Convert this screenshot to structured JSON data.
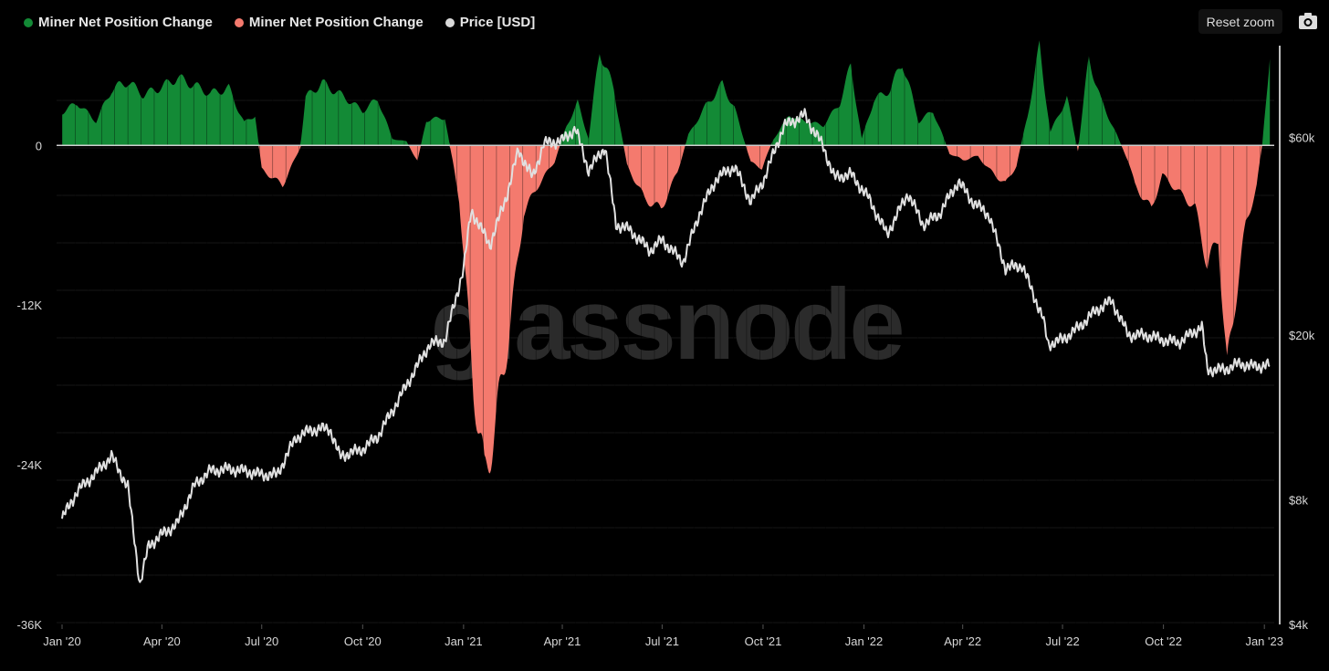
{
  "legend": {
    "items": [
      {
        "label": "Miner Net Position Change",
        "color": "#138a36"
      },
      {
        "label": "Miner Net Position Change",
        "color": "#f47a6e"
      },
      {
        "label": "Price [USD]",
        "color": "#d9d9d9"
      }
    ]
  },
  "toolbar": {
    "reset_label": "Reset zoom",
    "camera_icon": "camera-icon"
  },
  "watermark": "glassnode",
  "chart_data": {
    "type": "area",
    "x_ticks": [
      "Jan '20",
      "Apr '20",
      "Jul '20",
      "Oct '20",
      "Jan '21",
      "Apr '21",
      "Jul '21",
      "Oct '21",
      "Jan '22",
      "Apr '22",
      "Jul '22",
      "Oct '22",
      "Jan '23"
    ],
    "x_tick_dates": [
      "2020-01-01",
      "2020-04-01",
      "2020-07-01",
      "2020-10-01",
      "2021-01-01",
      "2021-04-01",
      "2021-07-01",
      "2021-10-01",
      "2022-01-01",
      "2022-04-01",
      "2022-07-01",
      "2022-10-01",
      "2023-01-01"
    ],
    "y_left": {
      "ticks": [
        "0",
        "-12K",
        "-24K",
        "-36K"
      ],
      "tick_values": [
        0,
        -12000,
        -24000,
        -36000
      ],
      "range": [
        -36000,
        7500
      ]
    },
    "y_right": {
      "ticks": [
        "$60k",
        "$20k",
        "$8k",
        "$4k"
      ],
      "tick_values": [
        60000,
        20000,
        8000,
        4000
      ],
      "scale": "log",
      "range": [
        4000,
        100000
      ]
    },
    "series": [
      {
        "name": "Miner Net Position Change",
        "color": "#138a36",
        "axis": "left",
        "role": "positive"
      },
      {
        "name": "Miner Net Position Change",
        "color": "#f47a6e",
        "axis": "left",
        "role": "negative"
      },
      {
        "name": "Price [USD]",
        "color": "#e0e0e0",
        "axis": "right"
      }
    ],
    "net_position": [
      [
        "2020-01-01",
        2500
      ],
      [
        "2020-01-15",
        3200
      ],
      [
        "2020-02-01",
        1800
      ],
      [
        "2020-02-15",
        4200
      ],
      [
        "2020-03-01",
        4800
      ],
      [
        "2020-03-15",
        3800
      ],
      [
        "2020-04-01",
        4400
      ],
      [
        "2020-04-15",
        5100
      ],
      [
        "2020-05-01",
        4500
      ],
      [
        "2020-05-15",
        3900
      ],
      [
        "2020-06-01",
        4300
      ],
      [
        "2020-06-15",
        1700
      ],
      [
        "2020-06-25",
        2300
      ],
      [
        "2020-07-01",
        -1800
      ],
      [
        "2020-07-20",
        -3000
      ],
      [
        "2020-08-05",
        -200
      ],
      [
        "2020-08-10",
        3600
      ],
      [
        "2020-08-25",
        4700
      ],
      [
        "2020-09-15",
        3600
      ],
      [
        "2020-10-01",
        2600
      ],
      [
        "2020-10-15",
        3500
      ],
      [
        "2020-10-28",
        500
      ],
      [
        "2020-11-10",
        300
      ],
      [
        "2020-11-20",
        -1200
      ],
      [
        "2020-11-28",
        1900
      ],
      [
        "2020-12-15",
        2100
      ],
      [
        "2020-12-28",
        -4000
      ],
      [
        "2021-01-10",
        -18000
      ],
      [
        "2021-01-20",
        -25000
      ],
      [
        "2021-01-30",
        -21000
      ],
      [
        "2021-02-10",
        -15000
      ],
      [
        "2021-02-25",
        -5000
      ],
      [
        "2021-03-10",
        -3000
      ],
      [
        "2021-03-25",
        -1200
      ],
      [
        "2021-04-05",
        1500
      ],
      [
        "2021-04-15",
        3200
      ],
      [
        "2021-04-25",
        500
      ],
      [
        "2021-05-05",
        7200
      ],
      [
        "2021-05-18",
        4200
      ],
      [
        "2021-05-30",
        -1500
      ],
      [
        "2021-06-15",
        -4000
      ],
      [
        "2021-06-30",
        -4800
      ],
      [
        "2021-07-15",
        -2000
      ],
      [
        "2021-07-25",
        800
      ],
      [
        "2021-08-10",
        3000
      ],
      [
        "2021-08-25",
        4600
      ],
      [
        "2021-09-05",
        2800
      ],
      [
        "2021-09-20",
        -1300
      ],
      [
        "2021-09-30",
        -1700
      ],
      [
        "2021-10-10",
        400
      ],
      [
        "2021-10-25",
        2300
      ],
      [
        "2021-11-05",
        1900
      ],
      [
        "2021-11-25",
        1500
      ],
      [
        "2021-12-10",
        3200
      ],
      [
        "2021-12-20",
        6000
      ],
      [
        "2021-12-30",
        500
      ],
      [
        "2022-01-10",
        3400
      ],
      [
        "2022-01-25",
        4200
      ],
      [
        "2022-02-05",
        6300
      ],
      [
        "2022-02-20",
        1800
      ],
      [
        "2022-03-05",
        2600
      ],
      [
        "2022-03-20",
        -600
      ],
      [
        "2022-04-01",
        -1100
      ],
      [
        "2022-04-15",
        -800
      ],
      [
        "2022-04-25",
        -1800
      ],
      [
        "2022-05-10",
        -2900
      ],
      [
        "2022-05-20",
        -1500
      ],
      [
        "2022-05-30",
        2200
      ],
      [
        "2022-06-10",
        7400
      ],
      [
        "2022-06-20",
        1000
      ],
      [
        "2022-07-05",
        3600
      ],
      [
        "2022-07-15",
        -400
      ],
      [
        "2022-07-25",
        6600
      ],
      [
        "2022-08-05",
        3400
      ],
      [
        "2022-08-20",
        700
      ],
      [
        "2022-08-30",
        -1200
      ],
      [
        "2022-09-05",
        -3000
      ],
      [
        "2022-09-20",
        -4800
      ],
      [
        "2022-09-30",
        -2200
      ],
      [
        "2022-10-15",
        -3500
      ],
      [
        "2022-10-30",
        -4700
      ],
      [
        "2022-11-10",
        -9000
      ],
      [
        "2022-11-20",
        -7000
      ],
      [
        "2022-11-28",
        -17000
      ],
      [
        "2022-12-05",
        -12000
      ],
      [
        "2022-12-15",
        -6000
      ],
      [
        "2022-12-25",
        -3000
      ],
      [
        "2022-12-30",
        0
      ],
      [
        "2023-01-06",
        6900
      ]
    ],
    "price": [
      [
        "2020-01-01",
        7200
      ],
      [
        "2020-01-15",
        8400
      ],
      [
        "2020-02-01",
        9300
      ],
      [
        "2020-02-15",
        10200
      ],
      [
        "2020-03-01",
        8600
      ],
      [
        "2020-03-12",
        5000
      ],
      [
        "2020-03-20",
        6200
      ],
      [
        "2020-04-01",
        6600
      ],
      [
        "2020-04-15",
        7000
      ],
      [
        "2020-05-01",
        8700
      ],
      [
        "2020-05-15",
        9400
      ],
      [
        "2020-06-01",
        9500
      ],
      [
        "2020-06-15",
        9400
      ],
      [
        "2020-07-01",
        9200
      ],
      [
        "2020-07-15",
        9200
      ],
      [
        "2020-08-01",
        11300
      ],
      [
        "2020-08-15",
        11800
      ],
      [
        "2020-09-01",
        11900
      ],
      [
        "2020-09-10",
        10200
      ],
      [
        "2020-10-01",
        10600
      ],
      [
        "2020-10-15",
        11400
      ],
      [
        "2020-11-01",
        13700
      ],
      [
        "2020-11-15",
        16000
      ],
      [
        "2020-12-01",
        19000
      ],
      [
        "2020-12-15",
        19400
      ],
      [
        "2021-01-01",
        29000
      ],
      [
        "2021-01-08",
        40000
      ],
      [
        "2021-01-25",
        33000
      ],
      [
        "2021-02-10",
        44000
      ],
      [
        "2021-02-20",
        56000
      ],
      [
        "2021-03-05",
        48000
      ],
      [
        "2021-03-15",
        58000
      ],
      [
        "2021-04-01",
        59000
      ],
      [
        "2021-04-13",
        63000
      ],
      [
        "2021-04-25",
        50000
      ],
      [
        "2021-05-10",
        57000
      ],
      [
        "2021-05-20",
        37000
      ],
      [
        "2021-06-01",
        36000
      ],
      [
        "2021-06-20",
        32000
      ],
      [
        "2021-07-01",
        34000
      ],
      [
        "2021-07-20",
        30000
      ],
      [
        "2021-08-05",
        40000
      ],
      [
        "2021-08-20",
        48000
      ],
      [
        "2021-09-05",
        51000
      ],
      [
        "2021-09-20",
        42000
      ],
      [
        "2021-10-01",
        47000
      ],
      [
        "2021-10-20",
        64000
      ],
      [
        "2021-11-08",
        68000
      ],
      [
        "2021-11-25",
        57000
      ],
      [
        "2021-12-05",
        48000
      ],
      [
        "2021-12-20",
        49000
      ],
      [
        "2022-01-05",
        43000
      ],
      [
        "2022-01-22",
        35000
      ],
      [
        "2022-02-10",
        44000
      ],
      [
        "2022-02-24",
        37000
      ],
      [
        "2022-03-10",
        39000
      ],
      [
        "2022-03-28",
        47000
      ],
      [
        "2022-04-10",
        42000
      ],
      [
        "2022-04-25",
        39000
      ],
      [
        "2022-05-10",
        29000
      ],
      [
        "2022-05-25",
        29500
      ],
      [
        "2022-06-13",
        22000
      ],
      [
        "2022-06-18",
        19000
      ],
      [
        "2022-07-01",
        19500
      ],
      [
        "2022-07-15",
        20800
      ],
      [
        "2022-08-01",
        23000
      ],
      [
        "2022-08-15",
        24200
      ],
      [
        "2022-08-30",
        20000
      ],
      [
        "2022-09-15",
        20000
      ],
      [
        "2022-09-30",
        19500
      ],
      [
        "2022-10-15",
        19200
      ],
      [
        "2022-11-05",
        21000
      ],
      [
        "2022-11-10",
        16500
      ],
      [
        "2022-11-25",
        16500
      ],
      [
        "2022-12-10",
        17100
      ],
      [
        "2022-12-20",
        16800
      ],
      [
        "2023-01-06",
        16900
      ]
    ]
  }
}
